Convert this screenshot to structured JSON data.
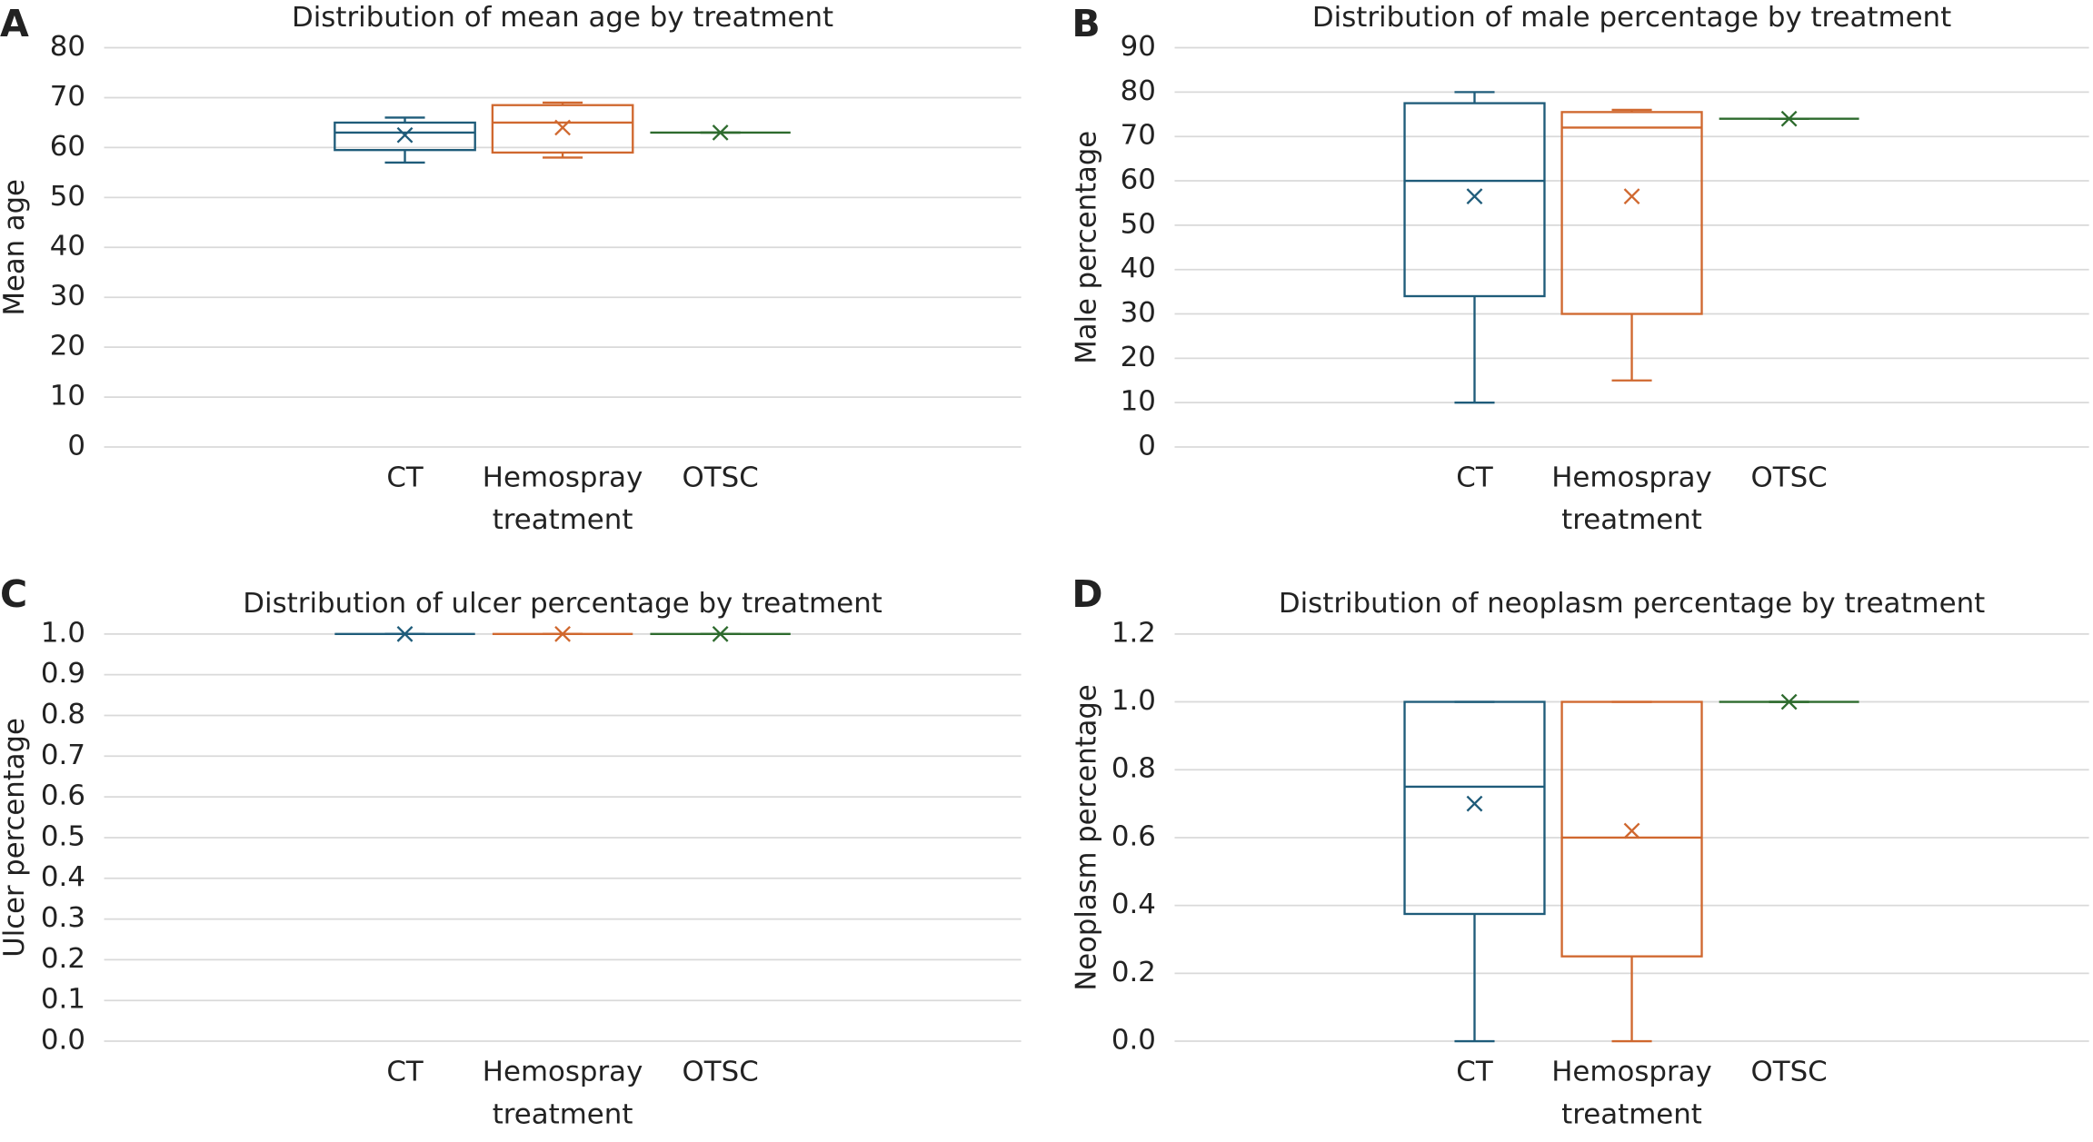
{
  "chart_data": [
    {
      "type": "box",
      "panel": "A",
      "title": "Distribution of mean age by treatment",
      "ylabel": "Mean age",
      "xlabel": "treatment",
      "categories": [
        "CT",
        "Hemospray",
        "OTSC"
      ],
      "boxes": [
        {
          "color": "#1f5c7a",
          "min": 57,
          "q1": 59.5,
          "median": 63,
          "q3": 65,
          "max": 66,
          "mean": 62.5
        },
        {
          "color": "#d0682f",
          "min": 58,
          "q1": 59,
          "median": 65,
          "q3": 68.5,
          "max": 69,
          "mean": 64
        },
        {
          "color": "#2e6b2e",
          "min": 63,
          "q1": 63,
          "median": 63,
          "q3": 63,
          "max": 63,
          "mean": 63
        }
      ],
      "ylim": [
        0,
        80
      ],
      "yticks": [
        0,
        10,
        20,
        30,
        40,
        50,
        60,
        70,
        80
      ],
      "grid": true
    },
    {
      "type": "box",
      "panel": "B",
      "title": "Distribution of male percentage by treatment",
      "ylabel": "Male percentage",
      "xlabel": "treatment",
      "categories": [
        "CT",
        "Hemospray",
        "OTSC"
      ],
      "boxes": [
        {
          "color": "#1f5c7a",
          "min": 10,
          "q1": 34,
          "median": 60,
          "q3": 77.5,
          "max": 80,
          "mean": 56.5
        },
        {
          "color": "#d0682f",
          "min": 15,
          "q1": 30,
          "median": 72,
          "q3": 75.5,
          "max": 76,
          "mean": 56.5
        },
        {
          "color": "#2e6b2e",
          "min": 74,
          "q1": 74,
          "median": 74,
          "q3": 74,
          "max": 74,
          "mean": 74
        }
      ],
      "ylim": [
        0,
        90
      ],
      "yticks": [
        0,
        10,
        20,
        30,
        40,
        50,
        60,
        70,
        80,
        90
      ],
      "grid": true
    },
    {
      "type": "box",
      "panel": "C",
      "title": "Distribution of ulcer percentage by treatment",
      "ylabel": "Ulcer percentage",
      "xlabel": "treatment",
      "categories": [
        "CT",
        "Hemospray",
        "OTSC"
      ],
      "boxes": [
        {
          "color": "#1f5c7a",
          "min": 1,
          "q1": 1,
          "median": 1,
          "q3": 1,
          "max": 1,
          "mean": 1
        },
        {
          "color": "#d0682f",
          "min": 1,
          "q1": 1,
          "median": 1,
          "q3": 1,
          "max": 1,
          "mean": 1
        },
        {
          "color": "#2e6b2e",
          "min": 1,
          "q1": 1,
          "median": 1,
          "q3": 1,
          "max": 1,
          "mean": 1
        }
      ],
      "ylim": [
        0,
        1
      ],
      "yticks": [
        {
          "value": 0,
          "label": "0.0"
        },
        0.1,
        0.2,
        0.3,
        0.4,
        0.5,
        0.6,
        0.7,
        0.8,
        0.9,
        {
          "value": 1,
          "label": "1.0"
        }
      ],
      "grid": true
    },
    {
      "type": "box",
      "panel": "D",
      "title": "Distribution of neoplasm percentage by treatment",
      "ylabel": "Neoplasm percentage",
      "xlabel": "treatment",
      "categories": [
        "CT",
        "Hemospray",
        "OTSC"
      ],
      "boxes": [
        {
          "color": "#1f5c7a",
          "min": 0,
          "q1": 0.375,
          "median": 0.75,
          "q3": 1,
          "max": 1,
          "mean": 0.7
        },
        {
          "color": "#d0682f",
          "min": 0,
          "q1": 0.25,
          "median": 0.6,
          "q3": 1,
          "max": 1,
          "mean": 0.62
        },
        {
          "color": "#2e6b2e",
          "min": 1,
          "q1": 1,
          "median": 1,
          "q3": 1,
          "max": 1,
          "mean": 1
        }
      ],
      "ylim": [
        0,
        1.2
      ],
      "yticks": [
        {
          "value": 0,
          "label": "0.0"
        },
        0.2,
        0.4,
        0.6,
        0.8,
        {
          "value": 1,
          "label": "1.0"
        },
        1.2
      ],
      "grid": true
    }
  ]
}
